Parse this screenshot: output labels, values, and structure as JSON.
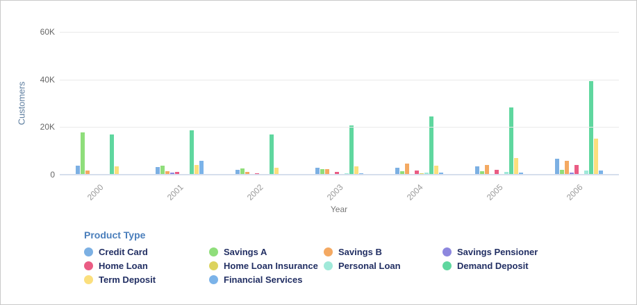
{
  "chart_data": {
    "type": "bar",
    "title": "",
    "xlabel": "Year",
    "ylabel": "Customers",
    "categories": [
      "2000",
      "2001",
      "2002",
      "2003",
      "2004",
      "2005",
      "2006"
    ],
    "ylim": [
      0,
      60000
    ],
    "grid": true,
    "legend_position": "bottom",
    "y_ticks": [
      {
        "label": "0",
        "value": 0
      },
      {
        "label": "20K",
        "value": 20000
      },
      {
        "label": "40K",
        "value": 40000
      },
      {
        "label": "60K",
        "value": 60000
      }
    ],
    "series": [
      {
        "name": "Credit Card",
        "color": "#7CB0E3",
        "values": [
          3900,
          3200,
          2100,
          2800,
          2900,
          3500,
          6600
        ]
      },
      {
        "name": "Savings A",
        "color": "#8FDE7B",
        "values": [
          17800,
          3800,
          2700,
          2200,
          1500,
          1500,
          2000
        ]
      },
      {
        "name": "Savings B",
        "color": "#F4A962",
        "values": [
          1700,
          1400,
          1200,
          2400,
          4600,
          4100,
          5900
        ]
      },
      {
        "name": "Savings Pensioner",
        "color": "#8D87DE",
        "values": [
          100,
          900,
          150,
          150,
          150,
          400,
          900
        ]
      },
      {
        "name": "Home Loan",
        "color": "#EA5C84",
        "values": [
          400,
          1200,
          600,
          1200,
          1800,
          2100,
          4100
        ]
      },
      {
        "name": "Home Loan Insurance",
        "color": "#DCD35E",
        "values": [
          100,
          100,
          100,
          100,
          500,
          150,
          150
        ]
      },
      {
        "name": "Personal Loan",
        "color": "#A0E9D9",
        "values": [
          150,
          150,
          200,
          500,
          800,
          1300,
          1700
        ]
      },
      {
        "name": "Demand Deposit",
        "color": "#5FD79F",
        "values": [
          17000,
          18700,
          16900,
          20800,
          24500,
          28300,
          39300
        ]
      },
      {
        "name": "Term Deposit",
        "color": "#FBDF7D",
        "values": [
          3400,
          4100,
          3000,
          3400,
          3700,
          7000,
          15200
        ]
      },
      {
        "name": "Financial Services",
        "color": "#7BB3E9",
        "values": [
          200,
          5800,
          400,
          600,
          900,
          900,
          1700
        ]
      }
    ]
  },
  "legend": {
    "title": "Product Type"
  }
}
